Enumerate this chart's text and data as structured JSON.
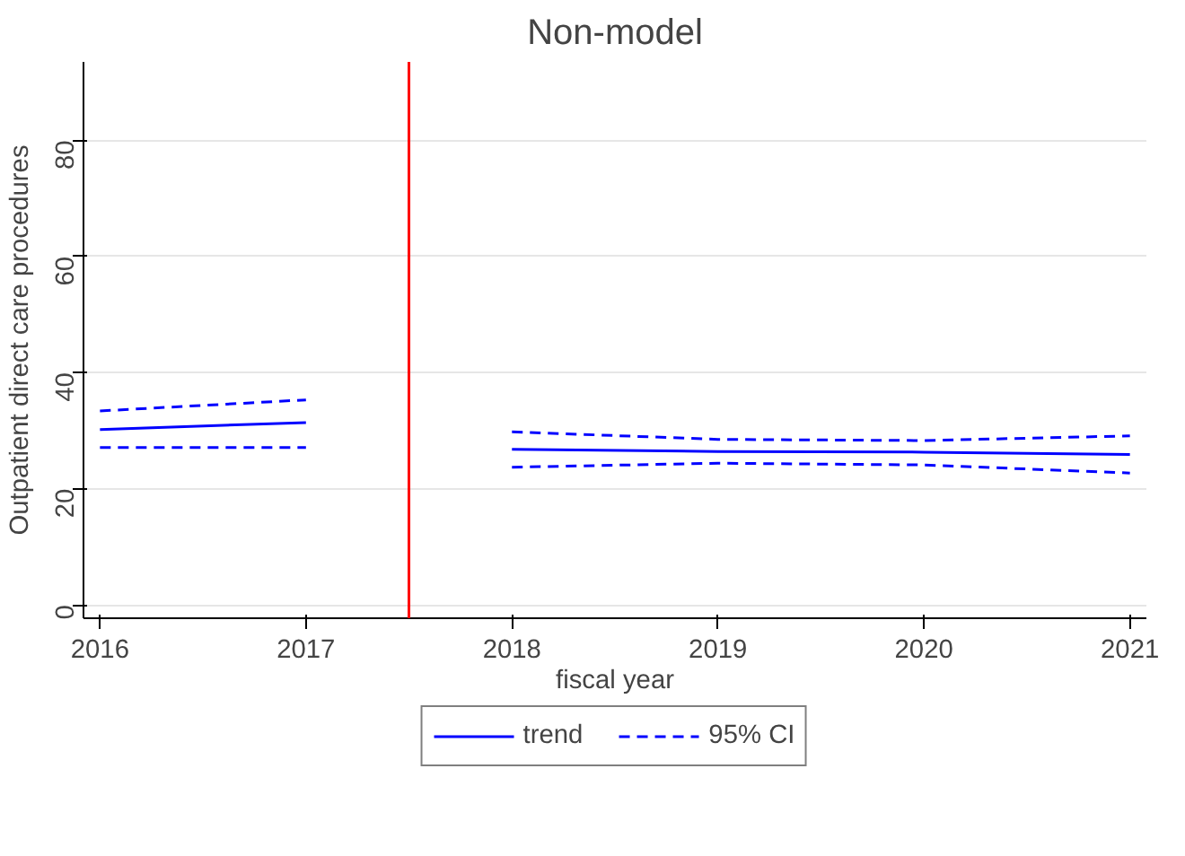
{
  "chart_data": {
    "type": "line",
    "title": "Non-model",
    "xlabel": "fiscal year",
    "ylabel": "Outpatient direct care procedures",
    "xlim": [
      2015.92,
      2021.08
    ],
    "xticks": [
      2016,
      2017,
      2018,
      2019,
      2020,
      2021
    ],
    "ylim": [
      -2.3,
      93.5
    ],
    "yticks": [
      0,
      20,
      40,
      60,
      80
    ],
    "grid": "y",
    "legend": "bottom",
    "series": [
      {
        "name": "trend",
        "color": "#0000ff",
        "line_style": "solid",
        "x": [
          2016,
          2017
        ],
        "values": [
          30.2,
          31.4
        ]
      },
      {
        "name": "95% CI",
        "color": "#0000ff",
        "line_style": "dashed",
        "x": [
          2016,
          2017
        ],
        "values": [
          33.4,
          35.3
        ]
      },
      {
        "color": "#0000ff",
        "line_style": "dashed",
        "x": [
          2016,
          2017
        ],
        "values": [
          27.1,
          27.1
        ]
      },
      {
        "color": "#0000ff",
        "line_style": "solid",
        "x": [
          2018,
          2019,
          2020,
          2021
        ],
        "values": [
          26.8,
          26.4,
          26.3,
          25.9
        ]
      },
      {
        "color": "#0000ff",
        "line_style": "dashed",
        "x": [
          2018,
          2019,
          2020,
          2021
        ],
        "values": [
          29.8,
          28.5,
          28.3,
          29.1
        ]
      },
      {
        "color": "#0000ff",
        "line_style": "dashed",
        "x": [
          2018,
          2019,
          2020,
          2021
        ],
        "values": [
          23.7,
          24.4,
          24.1,
          22.7
        ]
      }
    ],
    "ref_lines": [
      {
        "axis": "x",
        "value": 2017.5,
        "color": "#ff0000",
        "line_style": "solid"
      }
    ]
  }
}
